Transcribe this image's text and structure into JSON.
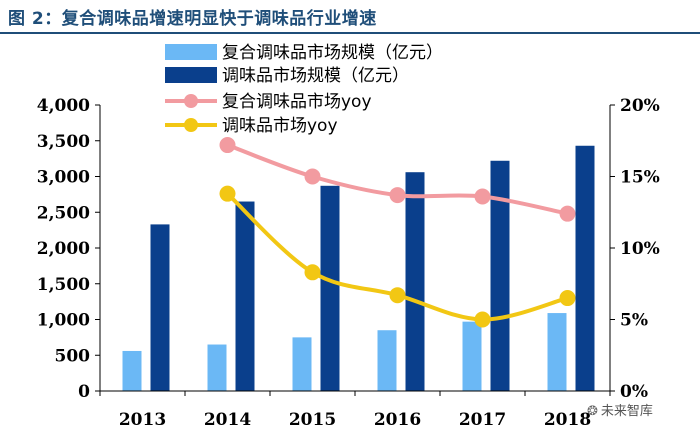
{
  "figure_title": "图 2：复合调味品增速明显快于调味品行业增速",
  "watermark": {
    "text": "未来智库",
    "icon": "wechat-icon",
    "icon_glyph": "❂"
  },
  "colors": {
    "compound_bar": "#6bb8f5",
    "seasoning_bar": "#0a3f8c",
    "compound_line": "#f29ba0",
    "seasoning_line": "#f2c714",
    "title": "#1f4e79"
  },
  "chart_data": {
    "type": "bar+line",
    "categories": [
      "2013",
      "2014",
      "2015",
      "2016",
      "2017",
      "2018"
    ],
    "series": [
      {
        "name": "复合调味品市场规模（亿元）",
        "type": "bar",
        "axis": "left",
        "values": [
          560,
          650,
          750,
          850,
          970,
          1090
        ]
      },
      {
        "name": "调味品市场规模（亿元）",
        "type": "bar",
        "axis": "left",
        "values": [
          2330,
          2650,
          2870,
          3060,
          3220,
          3430
        ]
      },
      {
        "name": "复合调味品市场yoy",
        "type": "line",
        "axis": "right",
        "values": [
          null,
          17.2,
          15.0,
          13.7,
          13.6,
          12.4
        ]
      },
      {
        "name": "调味品市场yoy",
        "type": "line",
        "axis": "right",
        "values": [
          null,
          13.8,
          8.3,
          6.7,
          5.0,
          6.5
        ]
      }
    ],
    "y_left": {
      "ylim": [
        0,
        4000
      ],
      "ticks": [
        "0",
        "500",
        "1,000",
        "1,500",
        "2,000",
        "2,500",
        "3,000",
        "3,500",
        "4,000"
      ]
    },
    "y_right": {
      "ylim": [
        0,
        20
      ],
      "ticks": [
        "0%",
        "5%",
        "10%",
        "15%",
        "20%"
      ]
    },
    "legend_position": "top-left",
    "grid": false
  }
}
